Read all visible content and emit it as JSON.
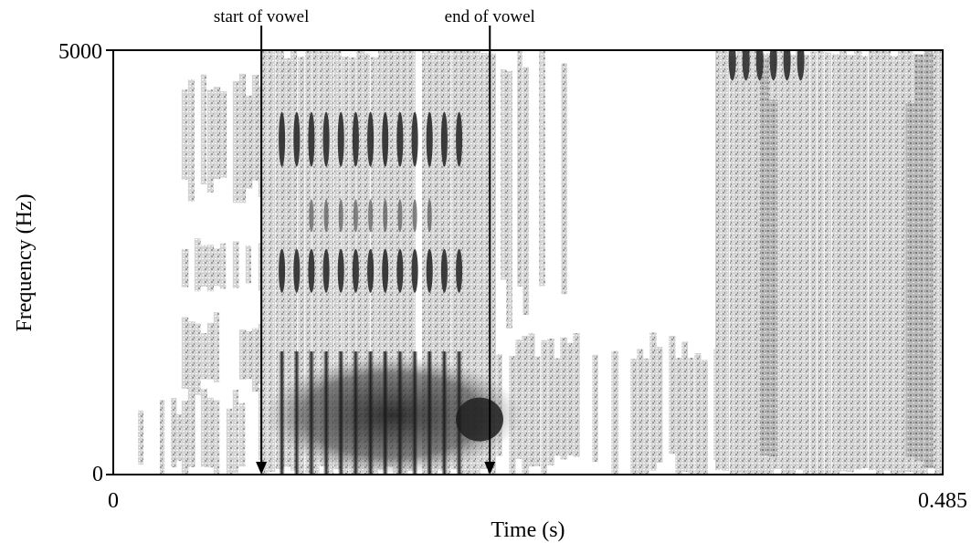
{
  "chart_data": {
    "type": "heatmap",
    "subtype": "spectrogram",
    "title": "",
    "xlabel": "Time (s)",
    "ylabel": "Frequency (Hz)",
    "xlim": [
      0,
      0.485
    ],
    "ylim": [
      0,
      5000
    ],
    "x_tick_labels": [
      "0",
      "0.485"
    ],
    "y_tick_labels": [
      "0",
      "5000"
    ],
    "grid": false,
    "annotations": [
      {
        "text": "start of vowel",
        "x": 0.0866,
        "arrow_to_y": 0
      },
      {
        "text": "end of vowel",
        "x": 0.2202,
        "arrow_to_y": 0
      }
    ],
    "regions": {
      "voiced_vowel": {
        "x_range": [
          0.0866,
          0.2202
        ],
        "pulse_count": 13,
        "formants_hz": [
          700,
          1200,
          2400,
          3950
        ]
      },
      "pre_noise": {
        "x_range": [
          0.0,
          0.0866
        ]
      },
      "post_low_noise": {
        "x_range": [
          0.2202,
          0.352
        ],
        "max_freq_hz": 1550
      },
      "fricative_noise": {
        "x_range": [
          0.352,
          0.485
        ],
        "freq_range_hz": [
          0,
          5000
        ]
      }
    },
    "colors": {
      "intensity_high": "#1a1a1a",
      "intensity_low": "#c8c8c8",
      "background": "#ffffff"
    }
  }
}
